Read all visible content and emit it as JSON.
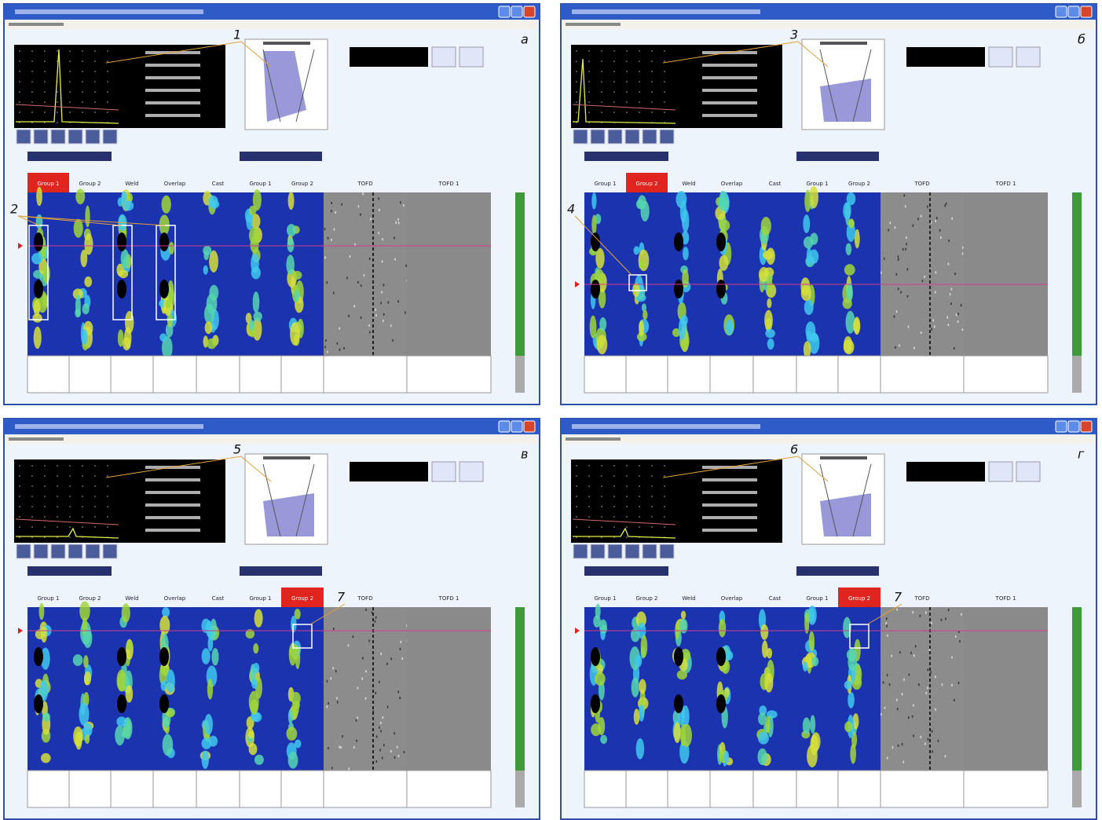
{
  "panels": [
    {
      "label": "а",
      "tabs": [
        "Group 1",
        "Group 2",
        "Weld",
        "Overlap",
        "Cast",
        "Group 1",
        "Group 2",
        "TOFD",
        "TOFD 1"
      ],
      "active_tab": 0,
      "callouts": [
        "1",
        "2"
      ]
    },
    {
      "label": "б",
      "tabs": [
        "Group 1",
        "Group 2",
        "Weld",
        "Overlap",
        "Cast",
        "Group 1",
        "Group 2",
        "TOFD",
        "TOFD 1"
      ],
      "active_tab": 1,
      "callouts": [
        "3",
        "4"
      ]
    },
    {
      "label": "в",
      "tabs": [
        "Group 1",
        "Group 2",
        "Weld",
        "Overlap",
        "Cast",
        "Group 1",
        "Group 2",
        "TOFD",
        "TOFD 1"
      ],
      "active_tab": 6,
      "callouts": [
        "5",
        "7"
      ]
    },
    {
      "label": "г",
      "tabs": [
        "Group 1",
        "Group 2",
        "Weld",
        "Overlap",
        "Cast",
        "Group 1",
        "Group 2",
        "TOFD",
        "TOFD 1"
      ],
      "active_tab": 6,
      "callouts": [
        "6",
        "7"
      ]
    }
  ]
}
